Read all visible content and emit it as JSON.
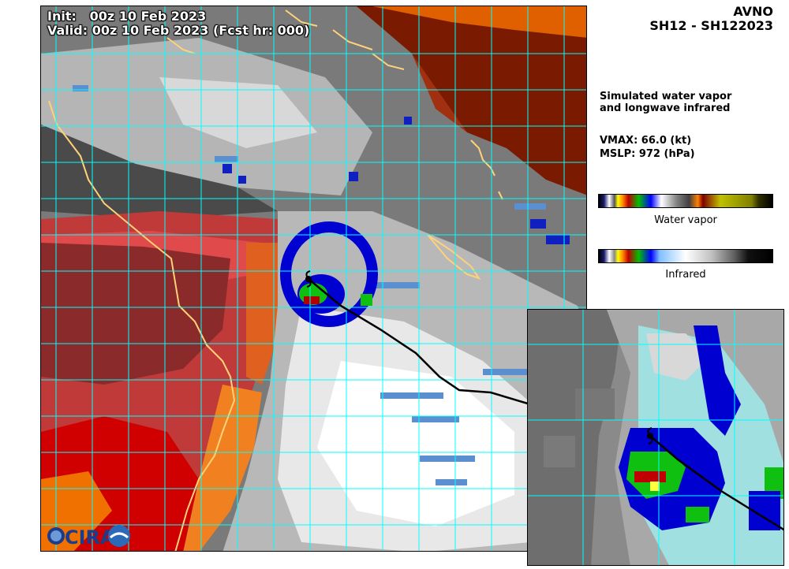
{
  "map": {
    "init_text": "Init:   00z 10 Feb 2023",
    "valid_text": "Valid: 00z 10 Feb 2023 (Fcst hr: 000)"
  },
  "header": {
    "model": "AVNO",
    "storm_id": "SH12 - SH122023"
  },
  "info": {
    "description_line1": "Simulated water vapor",
    "description_line2": "and longwave infrared",
    "vmax": "VMAX:  66.0 (kt)",
    "mslp": "MSLP:  972 (hPa)"
  },
  "colorbars": {
    "water_vapor_label": "Water vapor",
    "infrared_label": "Infrared"
  },
  "logo": {
    "text": "CIRA"
  },
  "colors": {
    "grid": "#00ffff",
    "coastline": "#ffd27a",
    "track": "#000000",
    "dry_red": "#c83030",
    "dry_orange": "#e05a00",
    "cloud_white": "#f0f0f0",
    "cloud_gray": "#8a8a8a",
    "cold_blue": "#0000d0",
    "cold_green": "#00c000"
  },
  "icons": [
    "tropical-cyclone-icon",
    "cira-logo"
  ]
}
